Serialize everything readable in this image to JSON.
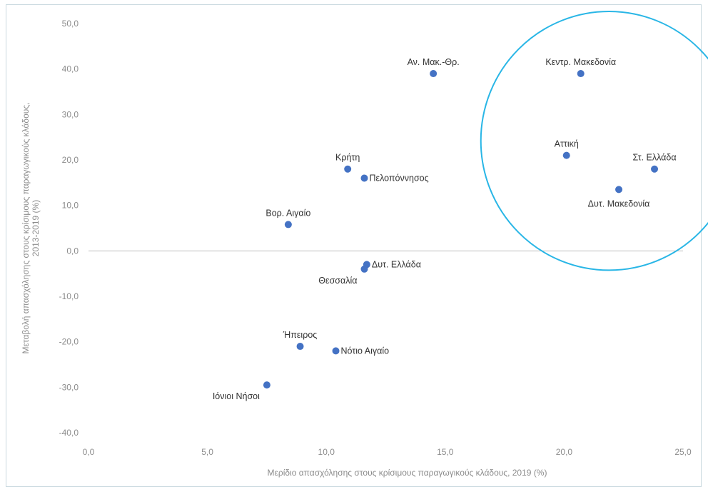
{
  "chart_data": {
    "type": "scatter",
    "xlabel": "Μερίδιο απασχόλησης στους κρίσιμους παραγωγικούς κλάδους, 2019 (%)",
    "ylabel_lines": [
      "Μεταβολή απασχόλησης στους κρίσιμους παραγωγικούς κλάδους,",
      "2013-2019 (%)"
    ],
    "xlim": [
      0,
      25
    ],
    "ylim": [
      -40,
      50
    ],
    "x_ticks": [
      "0,0",
      "5,0",
      "10,0",
      "15,0",
      "20,0",
      "25,0"
    ],
    "y_ticks": [
      "50,0",
      "40,0",
      "30,0",
      "20,0",
      "10,0",
      "0,0",
      "-10,0",
      "-20,0",
      "-30,0",
      "-40,0"
    ],
    "grid": false,
    "point_color": "#4472c4",
    "highlight_color": "#29b6e6",
    "points": [
      {
        "label": "Αν. Μακ.-Θρ.",
        "x": 14.5,
        "y": 39.0,
        "pos": "above"
      },
      {
        "label": "Κεντρ. Μακεδονία",
        "x": 20.7,
        "y": 39.0,
        "pos": "above"
      },
      {
        "label": "Αττική",
        "x": 20.1,
        "y": 21.0,
        "pos": "above"
      },
      {
        "label": "Στ. Ελλάδα",
        "x": 23.8,
        "y": 18.0,
        "pos": "above"
      },
      {
        "label": "Δυτ. Μακεδονία",
        "x": 22.3,
        "y": 13.5,
        "pos": "below"
      },
      {
        "label": "Κρήτη",
        "x": 10.9,
        "y": 18.0,
        "pos": "above"
      },
      {
        "label": "Πελοπόννησος",
        "x": 11.6,
        "y": 16.0,
        "pos": "right"
      },
      {
        "label": "Βορ. Αιγαίο",
        "x": 8.4,
        "y": 5.8,
        "pos": "above"
      },
      {
        "label": "Δυτ. Ελλάδα",
        "x": 11.7,
        "y": -3.0,
        "pos": "right"
      },
      {
        "label": "Θεσσαλία",
        "x": 11.6,
        "y": -4.0,
        "pos": "left"
      },
      {
        "label": "Ήπειρος",
        "x": 8.9,
        "y": -21.0,
        "pos": "above"
      },
      {
        "label": "Νότιο Αιγαίο",
        "x": 10.4,
        "y": -22.0,
        "pos": "right"
      },
      {
        "label": "Ιόνιοι Νήσοι",
        "x": 7.5,
        "y": -29.5,
        "pos": "left"
      }
    ],
    "highlight_group": [
      "Κεντρ. Μακεδονία",
      "Αττική",
      "Στ. Ελλάδα",
      "Δυτ. Μακεδονία"
    ]
  }
}
